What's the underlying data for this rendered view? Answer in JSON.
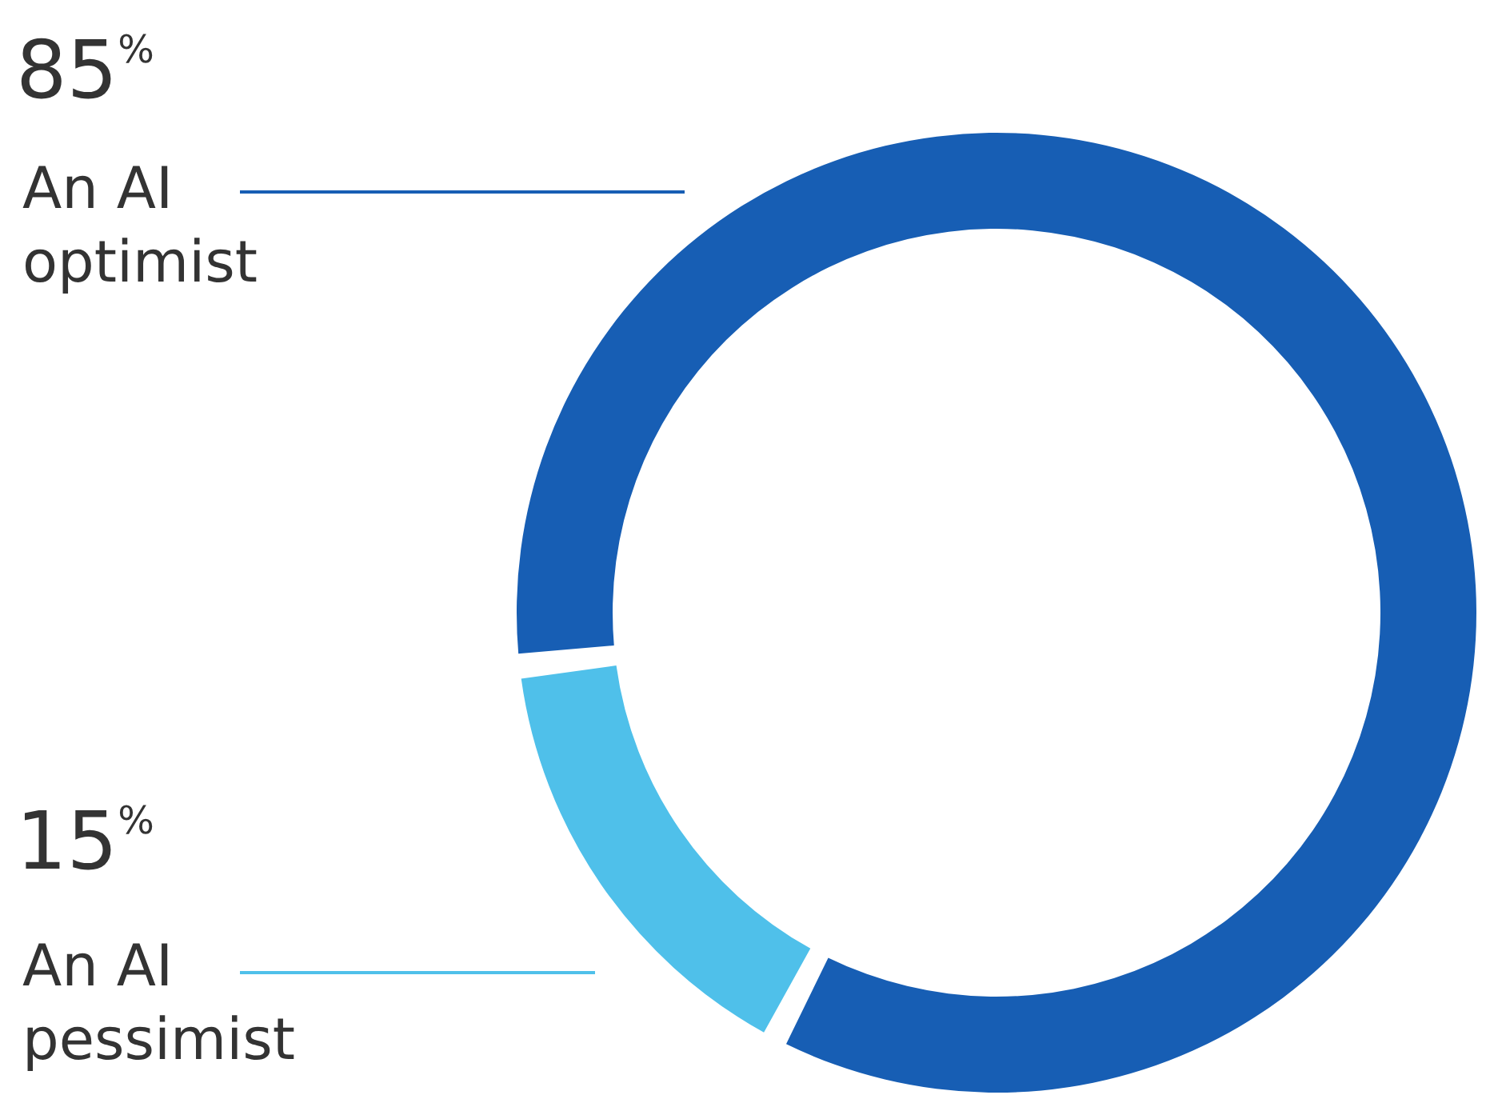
{
  "chart_data": {
    "type": "donut",
    "categories": [
      "An AI optimist",
      "An AI pessimist"
    ],
    "values": [
      85,
      15
    ],
    "colors": [
      "#175eb4",
      "#4fc0ea"
    ],
    "value_labels": [
      "85$^{%}$",
      "15$^{%}$"
    ]
  }
}
